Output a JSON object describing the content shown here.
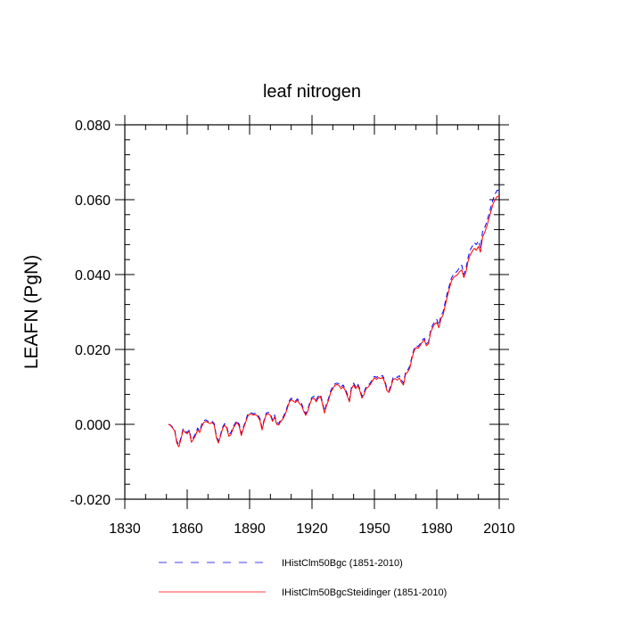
{
  "chart_data": {
    "type": "line",
    "title": "leaf nitrogen",
    "xlabel": "",
    "ylabel": "LEAFN  (PgN)",
    "xlim": [
      1830,
      2010
    ],
    "ylim": [
      -0.02,
      0.08
    ],
    "xticks": [
      1830,
      1860,
      1890,
      1920,
      1950,
      1980,
      2010
    ],
    "xtick_labels": [
      "1830",
      "1860",
      "1890",
      "1920",
      "1950",
      "1980",
      "2010"
    ],
    "yticks": [
      -0.02,
      0.0,
      0.02,
      0.04,
      0.06,
      0.08
    ],
    "ytick_labels": [
      "-0.020",
      "0.000",
      "0.020",
      "0.040",
      "0.060",
      "0.080"
    ],
    "grid": false,
    "legend_position": "bottom",
    "x": [
      1851,
      1852,
      1853,
      1854,
      1855,
      1856,
      1857,
      1858,
      1859,
      1860,
      1861,
      1862,
      1863,
      1864,
      1865,
      1866,
      1867,
      1868,
      1869,
      1870,
      1871,
      1872,
      1873,
      1874,
      1875,
      1876,
      1877,
      1878,
      1879,
      1880,
      1881,
      1882,
      1883,
      1884,
      1885,
      1886,
      1887,
      1888,
      1889,
      1890,
      1891,
      1892,
      1893,
      1894,
      1895,
      1896,
      1897,
      1898,
      1899,
      1900,
      1901,
      1902,
      1903,
      1904,
      1905,
      1906,
      1907,
      1908,
      1909,
      1910,
      1911,
      1912,
      1913,
      1914,
      1915,
      1916,
      1917,
      1918,
      1919,
      1920,
      1921,
      1922,
      1923,
      1924,
      1925,
      1926,
      1927,
      1928,
      1929,
      1930,
      1931,
      1932,
      1933,
      1934,
      1935,
      1936,
      1937,
      1938,
      1939,
      1940,
      1941,
      1942,
      1943,
      1944,
      1945,
      1946,
      1947,
      1948,
      1949,
      1950,
      1951,
      1952,
      1953,
      1954,
      1955,
      1956,
      1957,
      1958,
      1959,
      1960,
      1961,
      1962,
      1963,
      1964,
      1965,
      1966,
      1967,
      1968,
      1969,
      1970,
      1971,
      1972,
      1973,
      1974,
      1975,
      1976,
      1977,
      1978,
      1979,
      1980,
      1981,
      1982,
      1983,
      1984,
      1985,
      1986,
      1987,
      1988,
      1989,
      1990,
      1991,
      1992,
      1993,
      1994,
      1995,
      1996,
      1997,
      1998,
      1999,
      2000,
      2001,
      2002,
      2003,
      2004,
      2005,
      2006,
      2007,
      2008,
      2009,
      2010
    ],
    "series": [
      {
        "name": "IHistClm50Bgc (1851-2010)",
        "color": "#0000ff",
        "dash": "dashed",
        "values": [
          0.0,
          -0.0002,
          -0.0008,
          -0.0015,
          -0.0045,
          -0.0055,
          -0.0035,
          -0.0012,
          -0.0018,
          -0.0022,
          -0.0015,
          -0.0042,
          -0.0035,
          -0.0025,
          -0.001,
          -0.0018,
          0.0,
          0.001,
          0.0012,
          0.0008,
          0.0005,
          0.0008,
          0.0002,
          -0.003,
          -0.0045,
          -0.0028,
          -0.0008,
          0.0002,
          -0.0005,
          -0.0028,
          -0.0022,
          -0.0008,
          0.0002,
          0.001,
          0.0,
          -0.0025,
          -0.0008,
          0.0008,
          0.0025,
          0.0032,
          0.003,
          0.0028,
          0.003,
          0.0025,
          0.0015,
          -0.001,
          0.0012,
          0.003,
          0.0032,
          0.0028,
          0.0012,
          0.0025,
          0.0005,
          0.0002,
          0.0012,
          0.0018,
          0.003,
          0.0045,
          0.0062,
          0.007,
          0.0066,
          0.0062,
          0.0068,
          0.006,
          0.0055,
          0.004,
          0.0028,
          0.004,
          0.006,
          0.0072,
          0.0075,
          0.0065,
          0.0075,
          0.008,
          0.006,
          0.0035,
          0.0055,
          0.007,
          0.009,
          0.01,
          0.0108,
          0.011,
          0.0108,
          0.01,
          0.0105,
          0.0095,
          0.008,
          0.0065,
          0.01,
          0.011,
          0.01,
          0.0108,
          0.0095,
          0.0075,
          0.0085,
          0.01,
          0.0105,
          0.011,
          0.012,
          0.0128,
          0.0125,
          0.013,
          0.0128,
          0.013,
          0.0118,
          0.0095,
          0.009,
          0.0105,
          0.0125,
          0.0128,
          0.0125,
          0.013,
          0.0118,
          0.011,
          0.014,
          0.0145,
          0.0155,
          0.018,
          0.02,
          0.021,
          0.0208,
          0.0215,
          0.0225,
          0.023,
          0.0215,
          0.022,
          0.025,
          0.0265,
          0.0275,
          0.028,
          0.0265,
          0.029,
          0.03,
          0.0325,
          0.035,
          0.037,
          0.039,
          0.04,
          0.0405,
          0.041,
          0.042,
          0.0425,
          0.04,
          0.0415,
          0.0445,
          0.0465,
          0.0475,
          0.0485,
          0.048,
          0.049,
          0.047,
          0.0515,
          0.0525,
          0.054,
          0.056,
          0.058,
          0.06,
          0.0615,
          0.0625,
          0.0625
        ]
      },
      {
        "name": "IHistClm50BgcSteidinger (1851-2010)",
        "color": "#ff0000",
        "dash": "solid",
        "values": [
          0.0,
          -0.0003,
          -0.001,
          -0.0018,
          -0.005,
          -0.006,
          -0.004,
          -0.0015,
          -0.0022,
          -0.0025,
          -0.0018,
          -0.0048,
          -0.004,
          -0.003,
          -0.0015,
          -0.0022,
          -0.0005,
          0.0005,
          0.0008,
          0.0005,
          0.0002,
          0.0005,
          -0.0002,
          -0.0035,
          -0.005,
          -0.0032,
          -0.0012,
          -0.0002,
          -0.001,
          -0.0032,
          -0.0028,
          -0.0012,
          -0.0002,
          0.0005,
          -0.0005,
          -0.003,
          -0.0012,
          0.0004,
          0.002,
          0.0028,
          0.0026,
          0.0025,
          0.0026,
          0.002,
          0.001,
          -0.0015,
          0.0008,
          0.0026,
          0.0028,
          0.0024,
          0.0008,
          0.002,
          0.0,
          -0.0002,
          0.0008,
          0.0014,
          0.0025,
          0.004,
          0.0058,
          0.0066,
          0.0062,
          0.0058,
          0.0064,
          0.0055,
          0.005,
          0.0035,
          0.0024,
          0.0035,
          0.0055,
          0.0068,
          0.007,
          0.006,
          0.007,
          0.0075,
          0.0055,
          0.003,
          0.005,
          0.0065,
          0.0085,
          0.0095,
          0.0104,
          0.0106,
          0.0104,
          0.0095,
          0.01,
          0.009,
          0.0075,
          0.006,
          0.0095,
          0.0105,
          0.0095,
          0.0104,
          0.009,
          0.007,
          0.008,
          0.0095,
          0.01,
          0.0106,
          0.0116,
          0.0124,
          0.012,
          0.0125,
          0.0122,
          0.0125,
          0.0112,
          0.009,
          0.0085,
          0.01,
          0.012,
          0.0122,
          0.0118,
          0.0124,
          0.0112,
          0.0105,
          0.0134,
          0.014,
          0.015,
          0.0175,
          0.0195,
          0.0205,
          0.0203,
          0.021,
          0.022,
          0.0225,
          0.021,
          0.0215,
          0.0245,
          0.0258,
          0.0268,
          0.0272,
          0.0258,
          0.0282,
          0.0292,
          0.0316,
          0.034,
          0.0362,
          0.0382,
          0.0392,
          0.0396,
          0.04,
          0.0408,
          0.0412,
          0.0392,
          0.0406,
          0.0435,
          0.0452,
          0.0462,
          0.047,
          0.0465,
          0.0475,
          0.046,
          0.05,
          0.0512,
          0.0528,
          0.0548,
          0.0568,
          0.0588,
          0.06,
          0.0608,
          0.061
        ]
      }
    ]
  }
}
